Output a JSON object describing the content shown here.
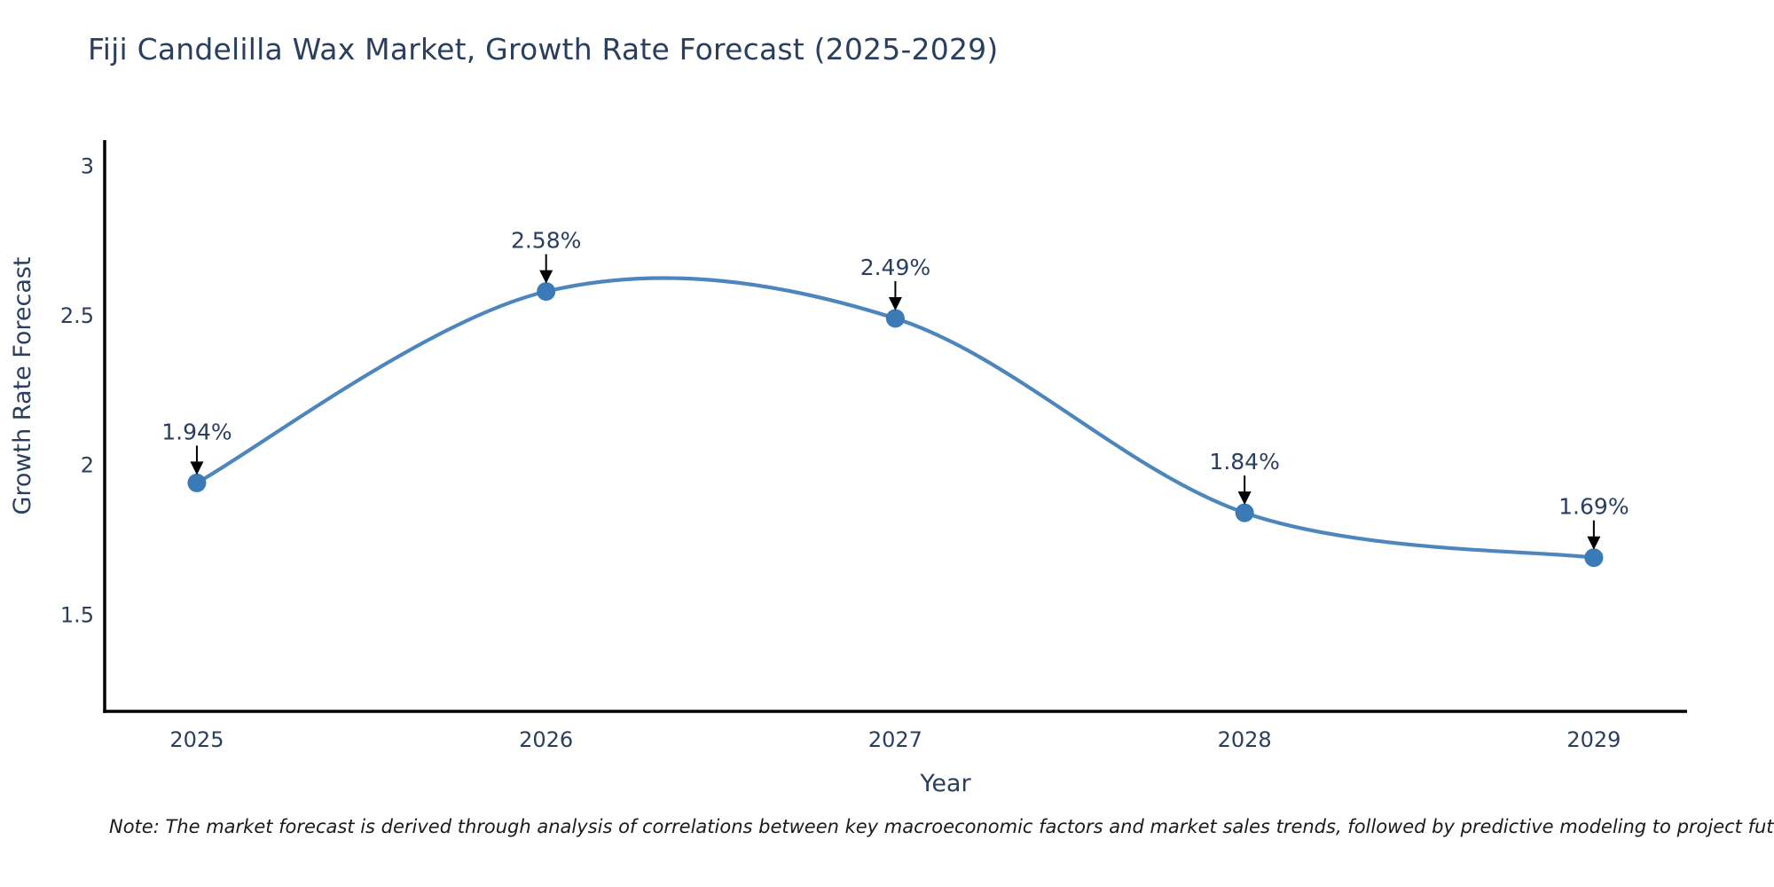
{
  "title": "Fiji Candelilla Wax Market, Growth Rate Forecast (2025-2029)",
  "note": "Note: The market forecast is derived through analysis of correlations between key macroeconomic factors and market sales trends, followed by predictive modeling to project future sales",
  "chart_data": {
    "type": "line",
    "line_shape": "spline",
    "title": "Fiji Candelilla Wax Market, Growth Rate Forecast (2025-2029)",
    "xlabel": "Year",
    "ylabel": "Growth Rate Forecast",
    "x": [
      2025,
      2026,
      2027,
      2028,
      2029
    ],
    "values": [
      1.94,
      2.58,
      2.49,
      1.84,
      1.69
    ],
    "point_labels": [
      "1.94%",
      "2.58%",
      "2.49%",
      "1.84%",
      "1.69%"
    ],
    "xtick_labels": [
      "2025",
      "2026",
      "2027",
      "2028",
      "2029"
    ],
    "yticks": [
      1.5,
      2,
      2.5,
      3
    ],
    "ytick_labels": [
      "1.5",
      "2",
      "2.5",
      "3"
    ],
    "xlim": [
      2024.736,
      2029.267
    ],
    "ylim": [
      1.176,
      3.086
    ],
    "grid": false,
    "legend": "none",
    "annotations_have_arrows": true,
    "colors": {
      "line": "#4d86bd",
      "marker": "#3a7ab6",
      "axis": "#000000",
      "tick_text": "#2a3f5f",
      "title_text": "#2a3f5f",
      "annotation_text": "#2a3f5f",
      "arrow": "#000000",
      "note_text": "#1a1a1a",
      "background": "#ffffff"
    }
  }
}
